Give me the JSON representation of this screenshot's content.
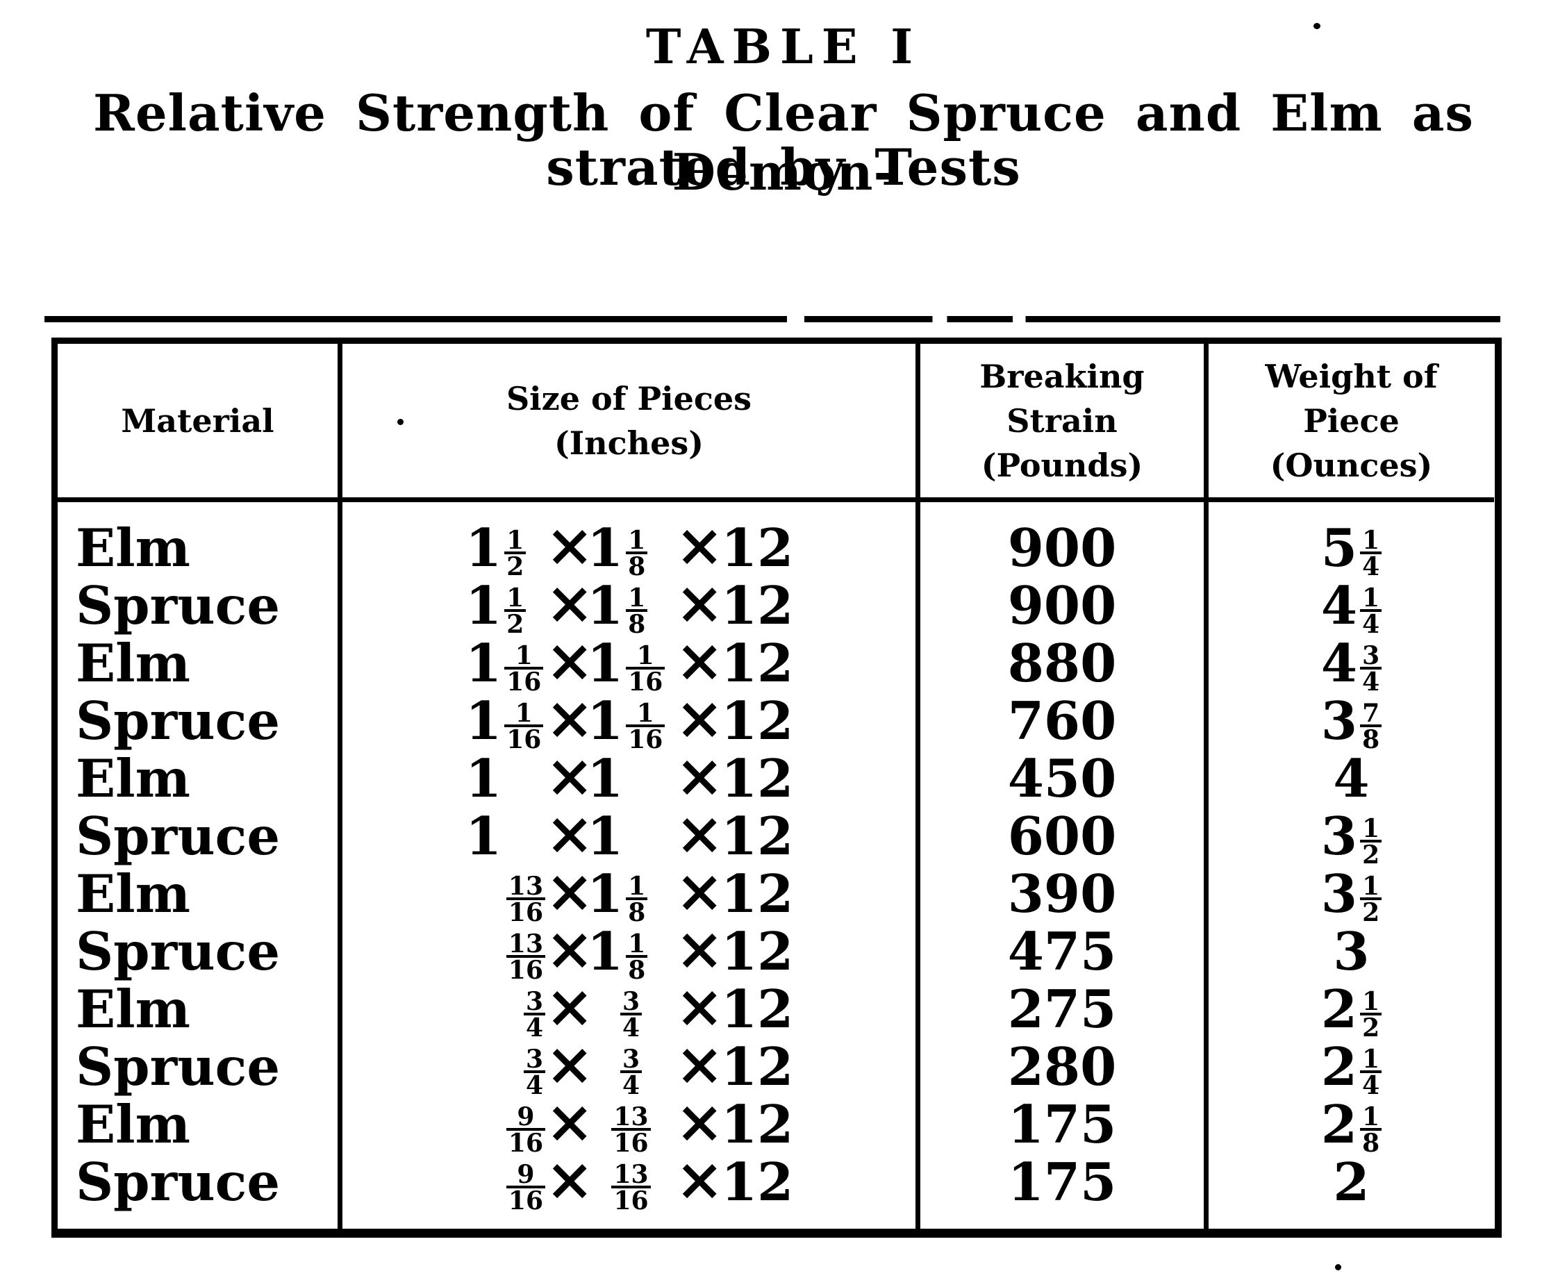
{
  "page": {
    "title": "TABLE I",
    "subtitle_line1": "Relative Strength of Clear Spruce and Elm as Demon-",
    "subtitle_line2": "strated by Tests"
  },
  "colors": {
    "ink": "#000000",
    "paper": "#ffffff"
  },
  "table": {
    "times_symbol": "×",
    "headers": {
      "material": [
        "Material"
      ],
      "size": [
        "Size of Pieces",
        "(Inches)"
      ],
      "strain": [
        "Breaking",
        "Strain",
        "(Pounds)"
      ],
      "weight": [
        "Weight of",
        "Piece",
        "(Ounces)"
      ]
    },
    "rows": [
      {
        "material": "Elm",
        "size": [
          {
            "whole": "1",
            "num": "1",
            "den": "2"
          },
          {
            "whole": "1",
            "num": "1",
            "den": "8"
          },
          {
            "whole": "12"
          }
        ],
        "strain": "900",
        "weight": {
          "whole": "5",
          "num": "1",
          "den": "4"
        }
      },
      {
        "material": "Spruce",
        "size": [
          {
            "whole": "1",
            "num": "1",
            "den": "2"
          },
          {
            "whole": "1",
            "num": "1",
            "den": "8"
          },
          {
            "whole": "12"
          }
        ],
        "strain": "900",
        "weight": {
          "whole": "4",
          "num": "1",
          "den": "4"
        }
      },
      {
        "material": "Elm",
        "size": [
          {
            "whole": "1",
            "num": "1",
            "den": "16"
          },
          {
            "whole": "1",
            "num": "1",
            "den": "16"
          },
          {
            "whole": "12"
          }
        ],
        "strain": "880",
        "weight": {
          "whole": "4",
          "num": "3",
          "den": "4"
        }
      },
      {
        "material": "Spruce",
        "size": [
          {
            "whole": "1",
            "num": "1",
            "den": "16"
          },
          {
            "whole": "1",
            "num": "1",
            "den": "16"
          },
          {
            "whole": "12"
          }
        ],
        "strain": "760",
        "weight": {
          "whole": "3",
          "num": "7",
          "den": "8"
        }
      },
      {
        "material": "Elm",
        "size": [
          {
            "whole": "1"
          },
          {
            "whole": "1"
          },
          {
            "whole": "12"
          }
        ],
        "strain": "450",
        "weight": {
          "whole": "4"
        }
      },
      {
        "material": "Spruce",
        "size": [
          {
            "whole": "1"
          },
          {
            "whole": "1"
          },
          {
            "whole": "12"
          }
        ],
        "strain": "600",
        "weight": {
          "whole": "3",
          "num": "1",
          "den": "2"
        }
      },
      {
        "material": "Elm",
        "size": [
          {
            "num": "13",
            "den": "16"
          },
          {
            "whole": "1",
            "num": "1",
            "den": "8"
          },
          {
            "whole": "12"
          }
        ],
        "strain": "390",
        "weight": {
          "whole": "3",
          "num": "1",
          "den": "2"
        }
      },
      {
        "material": "Spruce",
        "size": [
          {
            "num": "13",
            "den": "16"
          },
          {
            "whole": "1",
            "num": "1",
            "den": "8"
          },
          {
            "whole": "12"
          }
        ],
        "strain": "475",
        "weight": {
          "whole": "3"
        }
      },
      {
        "material": "Elm",
        "size": [
          {
            "num": "3",
            "den": "4"
          },
          {
            "num": "3",
            "den": "4"
          },
          {
            "whole": "12"
          }
        ],
        "strain": "275",
        "weight": {
          "whole": "2",
          "num": "1",
          "den": "2"
        }
      },
      {
        "material": "Spruce",
        "size": [
          {
            "num": "3",
            "den": "4"
          },
          {
            "num": "3",
            "den": "4"
          },
          {
            "whole": "12"
          }
        ],
        "strain": "280",
        "weight": {
          "whole": "2",
          "num": "1",
          "den": "4"
        }
      },
      {
        "material": "Elm",
        "size": [
          {
            "num": "9",
            "den": "16"
          },
          {
            "num": "13",
            "den": "16"
          },
          {
            "whole": "12"
          }
        ],
        "strain": "175",
        "weight": {
          "whole": "2",
          "num": "1",
          "den": "8"
        }
      },
      {
        "material": "Spruce",
        "size": [
          {
            "num": "9",
            "den": "16"
          },
          {
            "num": "13",
            "den": "16"
          },
          {
            "whole": "12"
          }
        ],
        "strain": "175",
        "weight": {
          "whole": "2"
        }
      }
    ]
  }
}
